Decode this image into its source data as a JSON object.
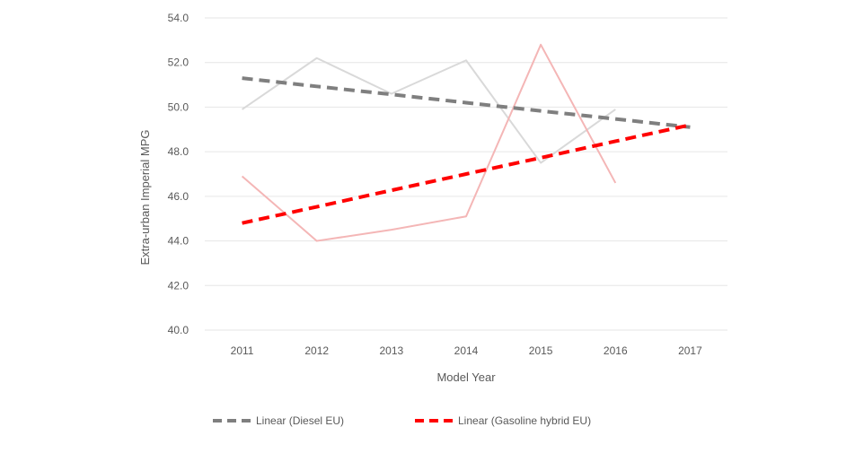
{
  "chart_data": {
    "type": "line",
    "title": "",
    "xlabel": "Model Year",
    "ylabel": "Extra-urban Imperial MPG",
    "categories": [
      "2011",
      "2012",
      "2013",
      "2014",
      "2015",
      "2016",
      "2017"
    ],
    "ylim": [
      40,
      54
    ],
    "yticks": [
      "40.0",
      "42.0",
      "44.0",
      "46.0",
      "48.0",
      "50.0",
      "52.0",
      "54.0"
    ],
    "grid": true,
    "legend_position": "bottom",
    "series": [
      {
        "values": [
          49.9,
          52.2,
          50.6,
          52.1,
          47.5,
          49.9,
          null
        ],
        "color": "#d9d9d9",
        "style": "solid"
      },
      {
        "values": [
          46.9,
          44.0,
          44.5,
          45.1,
          52.8,
          46.6,
          null
        ],
        "color": "#f4b6b6",
        "style": "solid"
      },
      {
        "name": "Linear (Diesel EU)",
        "values": [
          51.3,
          50.93,
          50.57,
          50.2,
          49.83,
          49.47,
          49.1
        ],
        "color": "#7f7f7f",
        "style": "dashed"
      },
      {
        "name": "Linear (Gasoline hybrid EU)",
        "values": [
          44.8,
          45.53,
          46.27,
          47.0,
          47.73,
          48.47,
          49.2
        ],
        "color": "#ff0000",
        "style": "dashed"
      }
    ]
  }
}
